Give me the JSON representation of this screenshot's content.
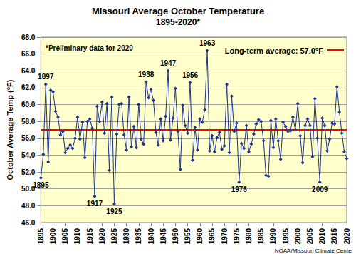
{
  "chart_data": {
    "type": "line",
    "title": "Missouri Average October Temperature",
    "subtitle": "1895-2020*",
    "y_label": "October Average Temp (°F)",
    "note": "*Preliminary data for 2020",
    "source": "NOAA/Missouri Climate Center",
    "x": [
      1895,
      1896,
      1897,
      1898,
      1899,
      1900,
      1901,
      1902,
      1903,
      1904,
      1905,
      1906,
      1907,
      1908,
      1909,
      1910,
      1911,
      1912,
      1913,
      1914,
      1915,
      1916,
      1917,
      1918,
      1919,
      1920,
      1921,
      1922,
      1923,
      1924,
      1925,
      1926,
      1927,
      1928,
      1929,
      1930,
      1931,
      1932,
      1933,
      1934,
      1935,
      1936,
      1937,
      1938,
      1939,
      1940,
      1941,
      1942,
      1943,
      1944,
      1945,
      1946,
      1947,
      1948,
      1949,
      1950,
      1951,
      1952,
      1953,
      1954,
      1955,
      1956,
      1957,
      1958,
      1959,
      1960,
      1961,
      1962,
      1963,
      1964,
      1965,
      1966,
      1967,
      1968,
      1969,
      1970,
      1971,
      1972,
      1973,
      1974,
      1975,
      1976,
      1977,
      1978,
      1979,
      1980,
      1981,
      1982,
      1983,
      1984,
      1985,
      1986,
      1987,
      1988,
      1989,
      1990,
      1991,
      1992,
      1993,
      1994,
      1995,
      1996,
      1997,
      1998,
      1999,
      2000,
      2001,
      2002,
      2003,
      2004,
      2005,
      2006,
      2007,
      2008,
      2009,
      2010,
      2011,
      2012,
      2013,
      2014,
      2015,
      2016,
      2017,
      2018,
      2019,
      2020
    ],
    "values": [
      51.3,
      54.1,
      62.4,
      53.2,
      61.7,
      61.5,
      59.2,
      58.5,
      56.4,
      56.8,
      54.3,
      54.8,
      55.2,
      54.8,
      56.0,
      58.5,
      55.9,
      57.9,
      53.7,
      58.0,
      58.3,
      57.2,
      49.1,
      59.8,
      58.0,
      60.3,
      56.6,
      60.1,
      52.2,
      60.9,
      48.2,
      56.5,
      60.0,
      60.1,
      56.4,
      54.6,
      60.9,
      55.0,
      57.4,
      54.9,
      60.0,
      55.9,
      55.3,
      62.7,
      60.8,
      61.8,
      60.5,
      56.7,
      55.2,
      58.3,
      55.7,
      58.6,
      64.0,
      55.8,
      58.4,
      61.9,
      56.8,
      52.3,
      59.9,
      57.5,
      56.6,
      62.6,
      53.4,
      57.3,
      54.6,
      58.3,
      57.9,
      59.4,
      66.4,
      54.5,
      56.3,
      54.4,
      56.1,
      56.7,
      54.7,
      55.1,
      62.4,
      54.3,
      61.0,
      56.8,
      57.8,
      50.8,
      55.4,
      54.8,
      57.5,
      54.4,
      55.3,
      56.5,
      57.7,
      58.2,
      58.0,
      55.7,
      51.6,
      51.5,
      58.1,
      54.9,
      58.3,
      55.7,
      53.5,
      57.9,
      57.4,
      56.8,
      56.9,
      58.5,
      57.0,
      60.1,
      56.3,
      53.1,
      57.5,
      58.3,
      57.5,
      53.8,
      60.7,
      56.0,
      50.8,
      58.4,
      57.5,
      54.5,
      55.9,
      57.8,
      57.7,
      62.1,
      59.1,
      56.6,
      54.4,
      53.6
    ],
    "color": "#1f3590",
    "marker": "diamond",
    "reference_line": {
      "name": "Long-term average: 57.0°F",
      "value": 57.0,
      "color": "#ff0000"
    },
    "annotations": [
      {
        "x": 1895,
        "label": "1895",
        "position": "bottom"
      },
      {
        "x": 1897,
        "label": "1897",
        "position": "top"
      },
      {
        "x": 1917,
        "label": "1917",
        "position": "bottom"
      },
      {
        "x": 1925,
        "label": "1925",
        "position": "bottom"
      },
      {
        "x": 1938,
        "label": "1938",
        "position": "top"
      },
      {
        "x": 1947,
        "label": "1947",
        "position": "top"
      },
      {
        "x": 1956,
        "label": "1956",
        "position": "top"
      },
      {
        "x": 1963,
        "label": "1963",
        "position": "top"
      },
      {
        "x": 1976,
        "label": "1976",
        "position": "bottom"
      },
      {
        "x": 2009,
        "label": "2009",
        "position": "bottom"
      }
    ],
    "xlim": [
      1895,
      2020
    ],
    "xticks": [
      1895,
      1900,
      1905,
      1910,
      1915,
      1920,
      1925,
      1930,
      1935,
      1940,
      1945,
      1950,
      1955,
      1960,
      1965,
      1970,
      1975,
      1980,
      1985,
      1990,
      1995,
      2000,
      2005,
      2010,
      2015,
      2020
    ],
    "ylim": [
      46,
      68
    ],
    "yticks": [
      {
        "value": 46,
        "label": "46.0"
      },
      {
        "value": 48,
        "label": "48.0"
      },
      {
        "value": 50,
        "label": "50.0"
      },
      {
        "value": 52,
        "label": "52.0"
      },
      {
        "value": 54,
        "label": "54.0"
      },
      {
        "value": 56,
        "label": "56.0"
      },
      {
        "value": 58,
        "label": "58.0"
      },
      {
        "value": 60,
        "label": "60.0"
      },
      {
        "value": 62,
        "label": "62.0"
      },
      {
        "value": 64,
        "label": "64.0"
      },
      {
        "value": 66,
        "label": "66.0"
      },
      {
        "value": 68,
        "label": "68.0"
      }
    ],
    "grid": true,
    "legend": "upper right"
  }
}
